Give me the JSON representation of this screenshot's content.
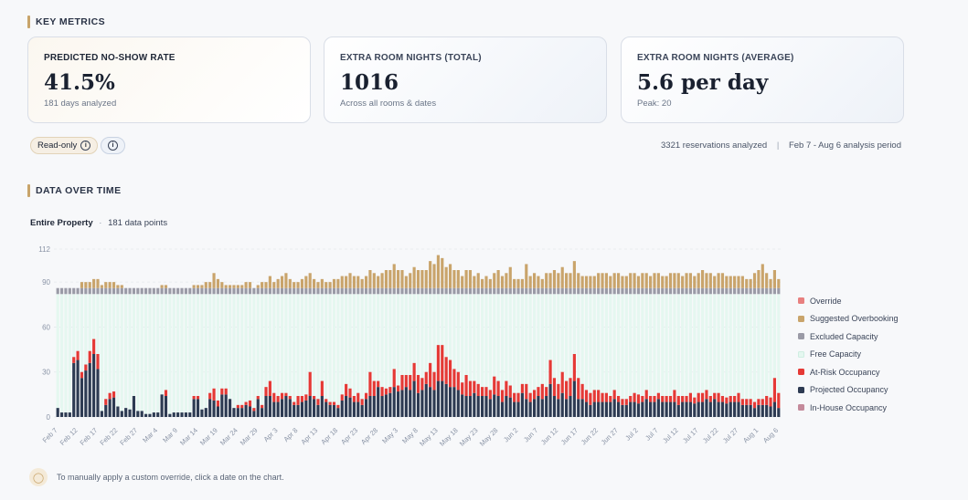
{
  "key_metrics": {
    "heading": "KEY METRICS",
    "cards": [
      {
        "label": "PREDICTED NO-SHOW RATE",
        "value": "41.5%",
        "sub": "181 days analyzed"
      },
      {
        "label": "EXTRA ROOM NIGHTS (TOTAL)",
        "value": "1016",
        "sub": "Across all rooms & dates"
      },
      {
        "label": "EXTRA ROOM NIGHTS (AVERAGE)",
        "value": "5.6 per day",
        "sub": "Peak: 20"
      }
    ]
  },
  "controls": {
    "readonly_label": "Read-only",
    "reservations": "3321 reservations analyzed",
    "separator": "|",
    "period": "Feb 7 - Aug 6 analysis period"
  },
  "data_section": {
    "heading": "DATA OVER TIME",
    "scope": "Entire Property",
    "dot": "·",
    "points": "181 data points"
  },
  "footer": {
    "tip": "To manually apply a custom override, click a date on the chart."
  },
  "colors": {
    "override": "#e8807f",
    "suggested": "#c9a46b",
    "excluded": "#9a9aa6",
    "free": "#e5f7f0",
    "atrisk": "#e53935",
    "projected": "#2d3a52",
    "inhouse": "#c48a9b"
  },
  "chart_data": {
    "type": "bar",
    "stacked": true,
    "start_date": "Feb 7",
    "end_date": "Aug 6",
    "num_points": 181,
    "ylim": [
      0,
      112
    ],
    "y_ticks": [
      0,
      30,
      60,
      90,
      112
    ],
    "x_tick_labels": [
      "Feb 7",
      "Feb 12",
      "Feb 17",
      "Feb 22",
      "Feb 27",
      "Mar 4",
      "Mar 9",
      "Mar 14",
      "Mar 19",
      "Mar 24",
      "Mar 29",
      "Apr 3",
      "Apr 8",
      "Apr 13",
      "Apr 18",
      "Apr 23",
      "Apr 28",
      "May 3",
      "May 8",
      "May 13",
      "May 18",
      "May 23",
      "May 28",
      "Jun 2",
      "Jun 7",
      "Jun 12",
      "Jun 17",
      "Jun 22",
      "Jun 27",
      "Jul 2",
      "Jul 7",
      "Jul 12",
      "Jul 17",
      "Jul 22",
      "Jul 27",
      "Aug 1",
      "Aug 6"
    ],
    "capacity": 82,
    "excluded_capacity": 4,
    "projected_occupancy": [
      6,
      3,
      3,
      3,
      36,
      38,
      26,
      31,
      36,
      42,
      32,
      4,
      8,
      12,
      13,
      7,
      4,
      6,
      5,
      14,
      4,
      4,
      2,
      2,
      3,
      3,
      15,
      14,
      2,
      3,
      3,
      3,
      3,
      3,
      12,
      12,
      5,
      6,
      12,
      11,
      7,
      15,
      15,
      12,
      6,
      6,
      6,
      8,
      7,
      4,
      12,
      6,
      14,
      14,
      10,
      10,
      12,
      14,
      12,
      8,
      8,
      10,
      11,
      14,
      12,
      8,
      14,
      10,
      8,
      8,
      6,
      11,
      14,
      13,
      10,
      10,
      8,
      12,
      14,
      14,
      20,
      14,
      15,
      16,
      20,
      17,
      18,
      20,
      18,
      24,
      16,
      18,
      22,
      20,
      18,
      24,
      24,
      22,
      20,
      20,
      18,
      15,
      14,
      14,
      16,
      14,
      14,
      14,
      12,
      15,
      14,
      10,
      14,
      13,
      10,
      10,
      16,
      12,
      10,
      12,
      14,
      12,
      14,
      22,
      14,
      12,
      16,
      12,
      14,
      24,
      12,
      12,
      10,
      8,
      10,
      10,
      10,
      10,
      10,
      12,
      10,
      8,
      8,
      10,
      10,
      9,
      10,
      12,
      10,
      10,
      12,
      10,
      10,
      10,
      10,
      8,
      10,
      10,
      10,
      9,
      10,
      10,
      12,
      10,
      12,
      10,
      10,
      9,
      10,
      10,
      10,
      8,
      8,
      8,
      6,
      8,
      8,
      8,
      7,
      10,
      6
    ],
    "at_risk_occupancy": [
      0,
      0,
      0,
      0,
      4,
      6,
      4,
      4,
      8,
      10,
      10,
      0,
      4,
      4,
      4,
      0,
      0,
      0,
      0,
      0,
      0,
      0,
      0,
      0,
      0,
      0,
      0,
      4,
      0,
      0,
      0,
      0,
      0,
      0,
      2,
      2,
      0,
      0,
      4,
      8,
      4,
      4,
      4,
      0,
      0,
      2,
      2,
      2,
      4,
      2,
      2,
      2,
      6,
      10,
      6,
      4,
      4,
      2,
      2,
      2,
      6,
      4,
      4,
      16,
      2,
      4,
      10,
      2,
      2,
      2,
      2,
      4,
      8,
      6,
      4,
      6,
      4,
      4,
      16,
      10,
      4,
      6,
      4,
      4,
      12,
      4,
      10,
      8,
      10,
      12,
      12,
      8,
      8,
      16,
      12,
      24,
      24,
      18,
      18,
      12,
      12,
      8,
      14,
      10,
      8,
      8,
      6,
      6,
      6,
      12,
      10,
      8,
      10,
      8,
      6,
      6,
      6,
      10,
      6,
      6,
      6,
      10,
      6,
      16,
      12,
      10,
      14,
      12,
      12,
      18,
      14,
      10,
      8,
      8,
      8,
      8,
      6,
      6,
      4,
      6,
      4,
      4,
      4,
      4,
      6,
      6,
      4,
      6,
      4,
      4,
      4,
      4,
      4,
      4,
      8,
      6,
      4,
      4,
      6,
      4,
      6,
      6,
      6,
      4,
      4,
      6,
      4,
      4,
      4,
      4,
      6,
      4,
      4,
      4,
      4,
      4,
      4,
      6,
      6,
      16,
      10
    ],
    "suggested_overbooking": [
      0,
      0,
      0,
      0,
      0,
      0,
      4,
      4,
      4,
      6,
      6,
      2,
      4,
      4,
      4,
      2,
      2,
      0,
      0,
      0,
      0,
      0,
      0,
      0,
      0,
      0,
      2,
      2,
      0,
      0,
      0,
      0,
      0,
      0,
      2,
      2,
      2,
      4,
      4,
      10,
      6,
      4,
      2,
      2,
      2,
      2,
      2,
      4,
      4,
      0,
      2,
      4,
      4,
      8,
      4,
      6,
      8,
      10,
      6,
      4,
      4,
      6,
      8,
      10,
      6,
      4,
      6,
      4,
      4,
      6,
      6,
      8,
      8,
      10,
      8,
      8,
      6,
      8,
      12,
      10,
      8,
      10,
      12,
      12,
      16,
      12,
      12,
      8,
      10,
      14,
      12,
      12,
      12,
      18,
      16,
      22,
      20,
      14,
      16,
      12,
      12,
      8,
      12,
      12,
      8,
      10,
      6,
      8,
      6,
      10,
      12,
      8,
      10,
      14,
      6,
      6,
      6,
      16,
      8,
      10,
      8,
      6,
      10,
      10,
      12,
      10,
      14,
      10,
      10,
      18,
      10,
      8,
      8,
      8,
      8,
      10,
      10,
      10,
      8,
      10,
      10,
      8,
      8,
      10,
      10,
      8,
      10,
      10,
      8,
      10,
      10,
      8,
      8,
      10,
      10,
      10,
      8,
      10,
      10,
      8,
      10,
      12,
      10,
      10,
      8,
      10,
      10,
      8,
      8,
      8,
      8,
      8,
      6,
      6,
      10,
      12,
      16,
      10,
      6,
      12,
      6
    ]
  }
}
